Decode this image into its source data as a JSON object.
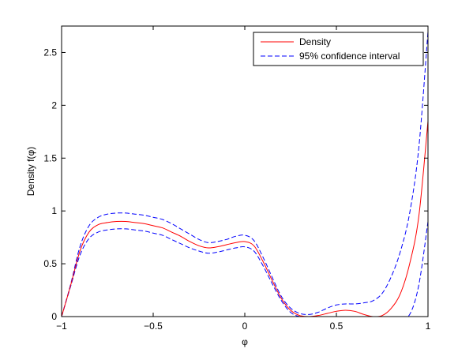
{
  "chart_data": {
    "type": "line",
    "xlabel": "φ",
    "ylabel": "Density f(φ)",
    "xlim": [
      -1,
      1
    ],
    "ylim": [
      0,
      2.75
    ],
    "xticks": [
      -1,
      -0.5,
      0,
      0.5,
      1
    ],
    "xtick_labels": [
      "−1",
      "−0.5",
      "0",
      "0.5",
      "1"
    ],
    "yticks": [
      0,
      0.5,
      1,
      1.5,
      2,
      2.5
    ],
    "ytick_labels": [
      "0",
      "0.5",
      "1",
      "1.5",
      "2",
      "2.5"
    ],
    "grid": false,
    "legend_position": "top-right",
    "legend": [
      {
        "label": "Density",
        "color": "#ff0000",
        "style": "solid"
      },
      {
        "label": "95% confidence interval",
        "color": "#0000ff",
        "style": "dashed"
      }
    ],
    "series": [
      {
        "name": "Density",
        "color": "#ff0000",
        "style": "solid",
        "x": [
          -1.0,
          -0.95,
          -0.9,
          -0.85,
          -0.8,
          -0.75,
          -0.7,
          -0.65,
          -0.6,
          -0.55,
          -0.5,
          -0.45,
          -0.4,
          -0.35,
          -0.3,
          -0.25,
          -0.2,
          -0.15,
          -0.1,
          -0.05,
          0.0,
          0.05,
          0.1,
          0.15,
          0.2,
          0.25,
          0.3,
          0.35,
          0.4,
          0.45,
          0.5,
          0.55,
          0.6,
          0.65,
          0.7,
          0.75,
          0.8,
          0.85,
          0.9,
          0.95,
          1.0
        ],
        "y": [
          0.0,
          0.3,
          0.62,
          0.8,
          0.87,
          0.89,
          0.9,
          0.9,
          0.89,
          0.88,
          0.86,
          0.84,
          0.8,
          0.76,
          0.71,
          0.67,
          0.65,
          0.66,
          0.68,
          0.7,
          0.71,
          0.67,
          0.52,
          0.34,
          0.17,
          0.06,
          0.01,
          0.0,
          0.01,
          0.03,
          0.05,
          0.06,
          0.05,
          0.02,
          0.0,
          0.01,
          0.08,
          0.22,
          0.5,
          0.95,
          1.85
        ]
      },
      {
        "name": "95% confidence interval",
        "color": "#0000ff",
        "style": "dashed",
        "x": [
          -1.0,
          -0.95,
          -0.9,
          -0.85,
          -0.8,
          -0.75,
          -0.7,
          -0.65,
          -0.6,
          -0.55,
          -0.5,
          -0.45,
          -0.4,
          -0.35,
          -0.3,
          -0.25,
          -0.2,
          -0.15,
          -0.1,
          -0.05,
          0.0,
          0.05,
          0.1,
          0.15,
          0.2,
          0.25,
          0.3,
          0.35,
          0.4,
          0.45,
          0.5,
          0.55,
          0.6,
          0.65,
          0.7,
          0.75,
          0.8,
          0.85,
          0.9,
          0.95,
          1.0
        ],
        "y": [
          0.0,
          0.31,
          0.66,
          0.86,
          0.94,
          0.97,
          0.98,
          0.98,
          0.97,
          0.96,
          0.94,
          0.92,
          0.88,
          0.83,
          0.78,
          0.73,
          0.7,
          0.71,
          0.73,
          0.76,
          0.77,
          0.72,
          0.56,
          0.37,
          0.19,
          0.08,
          0.03,
          0.02,
          0.04,
          0.08,
          0.11,
          0.12,
          0.12,
          0.13,
          0.15,
          0.22,
          0.38,
          0.62,
          0.98,
          1.6,
          2.7
        ]
      },
      {
        "name": "95% confidence interval",
        "color": "#0000ff",
        "style": "dashed",
        "x": [
          -1.0,
          -0.95,
          -0.9,
          -0.85,
          -0.8,
          -0.75,
          -0.7,
          -0.65,
          -0.6,
          -0.55,
          -0.5,
          -0.45,
          -0.4,
          -0.35,
          -0.3,
          -0.25,
          -0.2,
          -0.15,
          -0.1,
          -0.05,
          0.0,
          0.05,
          0.1,
          0.15,
          0.2,
          0.25,
          0.3,
          0.35,
          0.4,
          0.45,
          0.5,
          0.55,
          0.6,
          0.65,
          0.7,
          0.75,
          0.8,
          0.85,
          0.9,
          0.95,
          1.0
        ],
        "y": [
          0.0,
          0.29,
          0.58,
          0.74,
          0.8,
          0.82,
          0.83,
          0.83,
          0.82,
          0.81,
          0.79,
          0.77,
          0.73,
          0.69,
          0.65,
          0.62,
          0.6,
          0.61,
          0.63,
          0.65,
          0.66,
          0.62,
          0.48,
          0.31,
          0.15,
          0.04,
          0.0,
          0.0,
          0.0,
          0.0,
          0.0,
          0.0,
          0.0,
          0.0,
          0.0,
          0.0,
          0.0,
          0.0,
          0.02,
          0.3,
          0.9
        ]
      }
    ]
  }
}
